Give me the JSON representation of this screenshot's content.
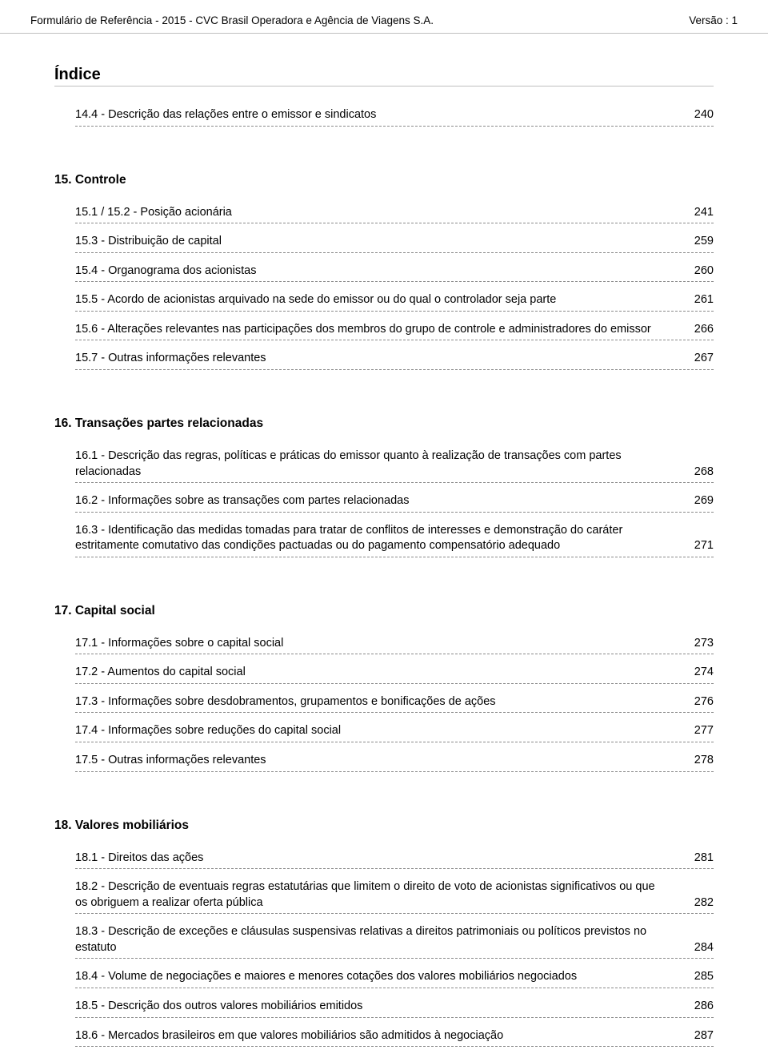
{
  "header": {
    "left": "Formulário de Referência - 2015 - CVC Brasil Operadora e Agência de Viagens S.A.",
    "right": "Versão : 1"
  },
  "title": "Índice",
  "sections": [
    {
      "heading": null,
      "items": [
        {
          "label": "14.4 - Descrição das relações entre o emissor e sindicatos",
          "page": "240"
        }
      ]
    },
    {
      "heading": "15. Controle",
      "items": [
        {
          "label": "15.1 / 15.2 - Posição acionária",
          "page": "241"
        },
        {
          "label": "15.3 - Distribuição de capital",
          "page": "259"
        },
        {
          "label": "15.4 - Organograma dos acionistas",
          "page": "260"
        },
        {
          "label": "15.5 - Acordo de acionistas arquivado na sede do emissor ou do qual o controlador seja parte",
          "page": "261"
        },
        {
          "label": "15.6 - Alterações relevantes nas participações dos membros do grupo de controle e administradores do emissor",
          "page": "266"
        },
        {
          "label": "15.7 - Outras informações relevantes",
          "page": "267"
        }
      ]
    },
    {
      "heading": "16. Transações partes relacionadas",
      "items": [
        {
          "label": "16.1 - Descrição das regras, políticas e práticas do emissor quanto à realização de transações com partes relacionadas",
          "page": "268"
        },
        {
          "label": "16.2 - Informações sobre as transações com partes relacionadas",
          "page": "269"
        },
        {
          "label": "16.3 - Identificação das medidas tomadas para tratar de conflitos de interesses e demonstração do caráter estritamente comutativo das condições pactuadas ou do pagamento compensatório adequado",
          "page": "271"
        }
      ]
    },
    {
      "heading": "17. Capital social",
      "items": [
        {
          "label": "17.1 - Informações sobre o capital social",
          "page": "273"
        },
        {
          "label": "17.2 - Aumentos do capital social",
          "page": "274"
        },
        {
          "label": "17.3 - Informações sobre desdobramentos, grupamentos e bonificações de ações",
          "page": "276"
        },
        {
          "label": "17.4 - Informações sobre reduções do capital social",
          "page": "277"
        },
        {
          "label": "17.5 - Outras informações relevantes",
          "page": "278"
        }
      ]
    },
    {
      "heading": "18. Valores mobiliários",
      "items": [
        {
          "label": "18.1 - Direitos das ações",
          "page": "281"
        },
        {
          "label": "18.2 - Descrição de eventuais regras estatutárias que limitem o direito de voto de acionistas significativos ou que os obriguem a realizar oferta pública",
          "page": "282"
        },
        {
          "label": "18.3 - Descrição de exceções e cláusulas suspensivas relativas a direitos patrimoniais ou políticos previstos no estatuto",
          "page": "284"
        },
        {
          "label": "18.4 - Volume de negociações e maiores e menores cotações dos valores mobiliários negociados",
          "page": "285"
        },
        {
          "label": "18.5 - Descrição dos outros valores mobiliários emitidos",
          "page": "286"
        },
        {
          "label": "18.6 - Mercados brasileiros em que valores mobiliários são admitidos à negociação",
          "page": "287"
        }
      ]
    }
  ]
}
